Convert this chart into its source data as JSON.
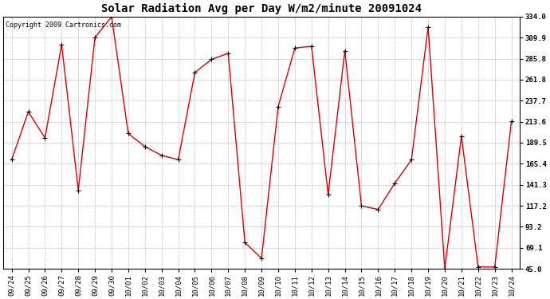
{
  "title": "Solar Radiation Avg per Day W/m2/minute 20091024",
  "copyright_text": "Copyright 2009 Cartronics.com",
  "dates": [
    "09/24",
    "09/25",
    "09/26",
    "09/27",
    "09/28",
    "09/29",
    "09/30",
    "10/01",
    "10/02",
    "10/03",
    "10/04",
    "10/05",
    "10/06",
    "10/07",
    "10/08",
    "10/09",
    "10/10",
    "10/11",
    "10/12",
    "10/13",
    "10/14",
    "10/15",
    "10/16",
    "10/17",
    "10/18",
    "10/19",
    "10/20",
    "10/21",
    "10/22",
    "10/23",
    "10/24"
  ],
  "values": [
    170,
    225,
    195,
    302,
    135,
    310,
    334,
    200,
    185,
    175,
    170,
    270,
    285,
    292,
    75,
    57,
    231,
    298,
    300,
    130,
    295,
    117,
    113,
    143,
    170,
    322,
    45,
    197,
    47,
    47,
    214
  ],
  "line_color": "#dd0000",
  "marker": "+",
  "marker_color": "#000000",
  "marker_size": 4,
  "marker_linewidth": 0.8,
  "line_width": 1.0,
  "background_color": "#ffffff",
  "plot_bg_color": "#ffffff",
  "grid_color": "#bbbbbb",
  "grid_linestyle": "--",
  "yticks": [
    45.0,
    69.1,
    93.2,
    117.2,
    141.3,
    165.4,
    189.5,
    213.6,
    237.7,
    261.8,
    285.8,
    309.9,
    334.0
  ],
  "ylim": [
    45.0,
    334.0
  ],
  "title_fontsize": 10,
  "tick_fontsize": 6.5,
  "copyright_fontsize": 6,
  "fig_width": 6.9,
  "fig_height": 3.75,
  "dpi": 100
}
